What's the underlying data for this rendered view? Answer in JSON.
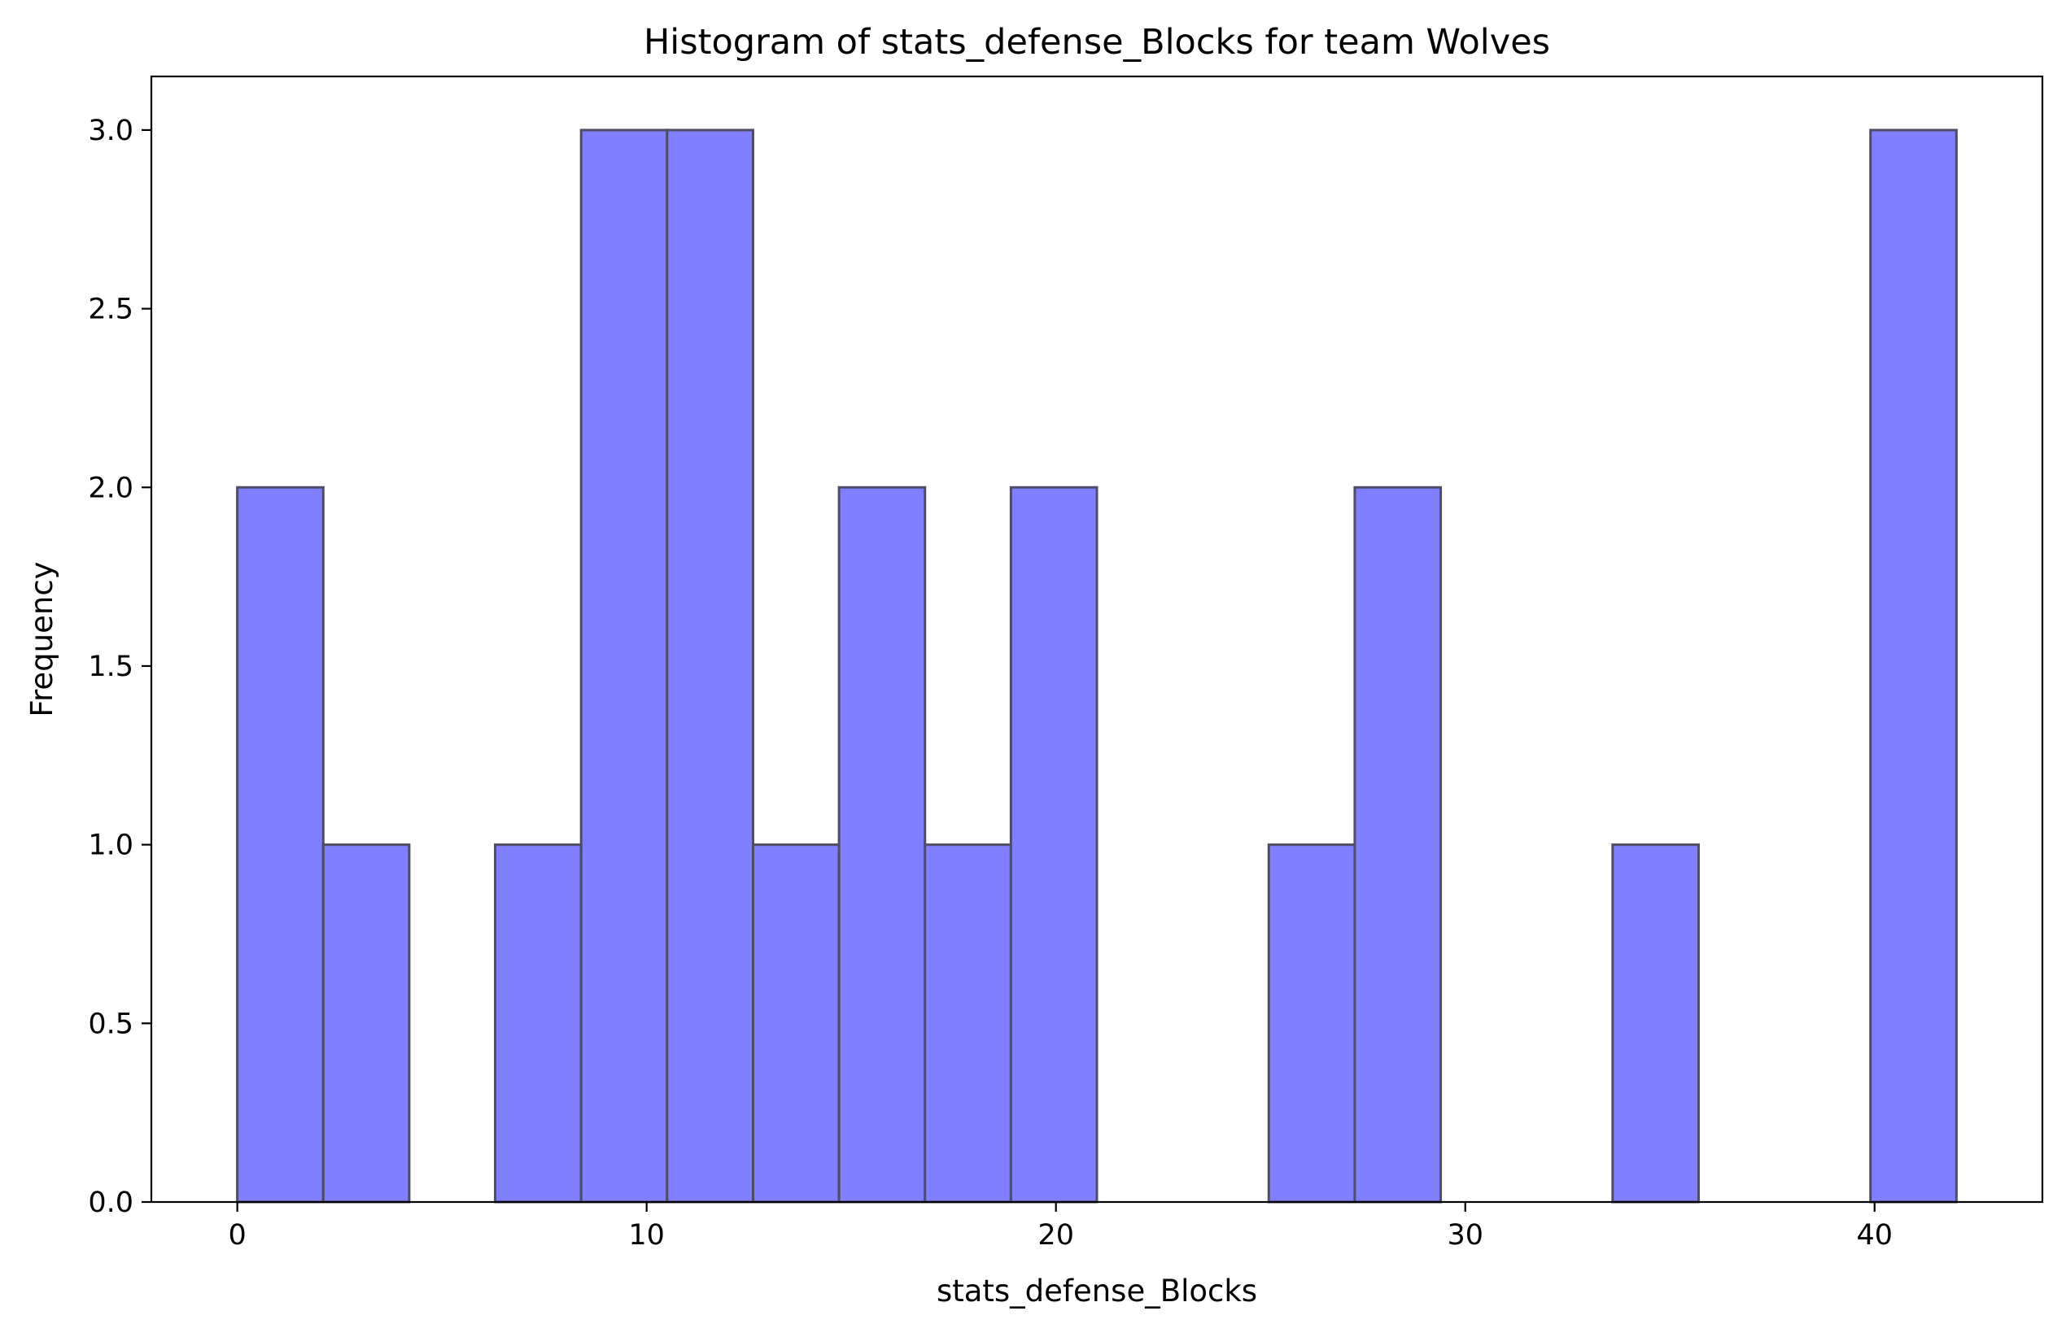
{
  "chart_data": {
    "type": "bar",
    "title": "Histogram of stats_defense_Blocks for team Wolves",
    "xlabel": "stats_defense_Blocks",
    "ylabel": "Frequency",
    "xlim": [
      -2.1,
      44.1
    ],
    "ylim": [
      0,
      3.15
    ],
    "grid": false,
    "bin_edges": [
      0,
      2.1,
      4.2,
      6.3,
      8.4,
      10.5,
      12.6,
      14.7,
      16.8,
      18.9,
      21.0,
      23.1,
      25.2,
      27.3,
      29.4,
      31.5,
      33.6,
      35.7,
      37.8,
      39.9,
      42.0
    ],
    "values": [
      2,
      1,
      0,
      1,
      3,
      3,
      1,
      2,
      1,
      2,
      0,
      0,
      1,
      2,
      0,
      0,
      1,
      0,
      0,
      3
    ],
    "bar_color": "#8080ff",
    "edge_color": "#4d4d66",
    "x_ticks": [
      {
        "value": 0,
        "label": "0"
      },
      {
        "value": 10,
        "label": "10"
      },
      {
        "value": 20,
        "label": "20"
      },
      {
        "value": 30,
        "label": "30"
      },
      {
        "value": 40,
        "label": "40"
      }
    ],
    "y_ticks": [
      {
        "value": 0,
        "label": "0.0"
      },
      {
        "value": 0.5,
        "label": "0.5"
      },
      {
        "value": 1.0,
        "label": "1.0"
      },
      {
        "value": 1.5,
        "label": "1.5"
      },
      {
        "value": 2.0,
        "label": "2.0"
      },
      {
        "value": 2.5,
        "label": "2.5"
      },
      {
        "value": 3.0,
        "label": "3.0"
      }
    ]
  }
}
